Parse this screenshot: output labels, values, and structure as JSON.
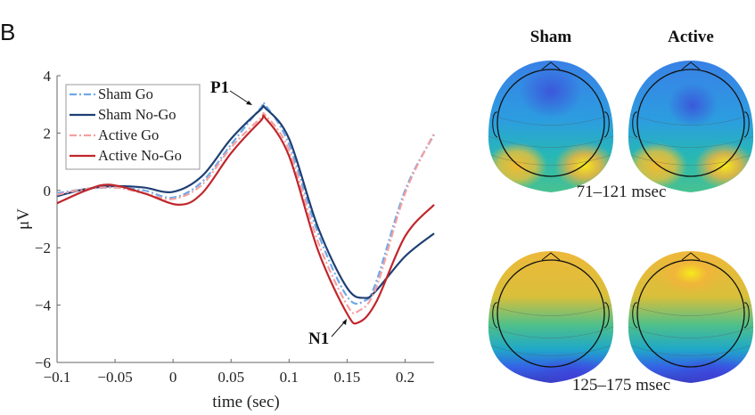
{
  "panel_label": "B",
  "chart_data": {
    "type": "line",
    "title": "",
    "xlabel": "time (sec)",
    "ylabel": "μV",
    "xlim": [
      -0.1,
      0.225
    ],
    "ylim": [
      -6,
      4
    ],
    "xticks": [
      -0.1,
      -0.05,
      0,
      0.05,
      0.1,
      0.15,
      0.2
    ],
    "xtick_labels": [
      "-0.1",
      "-0.05",
      "0",
      "0.05",
      "0.1",
      "0.15",
      "0.2"
    ],
    "yticks": [
      -6,
      -4,
      -2,
      0,
      2,
      4
    ],
    "ytick_labels": [
      "-6",
      "-4",
      "-2",
      "0",
      "2",
      "4"
    ],
    "grid": false,
    "legend_position": "top-left",
    "series": [
      {
        "name": "Sham Go",
        "color": "#6fa8e8",
        "style": "dashdot",
        "x": [
          -0.1,
          -0.075,
          -0.05,
          -0.025,
          0,
          0.025,
          0.05,
          0.075,
          0.08,
          0.1,
          0.125,
          0.15,
          0.165,
          0.175,
          0.2,
          0.225
        ],
        "y": [
          -0.1,
          0.05,
          0.1,
          0.0,
          -0.25,
          0.3,
          1.6,
          2.85,
          2.95,
          1.6,
          -1.5,
          -3.7,
          -3.85,
          -3.2,
          0.0,
          1.95
        ]
      },
      {
        "name": "Sham No-Go",
        "color": "#1f3f73",
        "style": "solid",
        "x": [
          -0.1,
          -0.075,
          -0.05,
          -0.025,
          0,
          0.025,
          0.05,
          0.075,
          0.08,
          0.1,
          0.125,
          0.15,
          0.165,
          0.175,
          0.2,
          0.225
        ],
        "y": [
          -0.2,
          0.05,
          0.15,
          0.1,
          -0.05,
          0.5,
          1.8,
          2.8,
          2.85,
          1.8,
          -1.3,
          -3.4,
          -3.75,
          -3.5,
          -2.3,
          -1.5
        ]
      },
      {
        "name": "Active Go",
        "color": "#f5a0a0",
        "style": "dashdot",
        "x": [
          -0.1,
          -0.075,
          -0.05,
          -0.025,
          0,
          0.025,
          0.05,
          0.075,
          0.08,
          0.1,
          0.125,
          0.15,
          0.16,
          0.175,
          0.2,
          0.225
        ],
        "y": [
          -0.15,
          0.05,
          0.1,
          -0.1,
          -0.3,
          0.2,
          1.5,
          2.5,
          2.6,
          1.4,
          -1.8,
          -4.0,
          -4.2,
          -3.4,
          -0.1,
          2.0
        ]
      },
      {
        "name": "Active No-Go",
        "color": "#c0262b",
        "style": "solid",
        "x": [
          -0.1,
          -0.075,
          -0.055,
          -0.025,
          0.005,
          0.025,
          0.05,
          0.075,
          0.08,
          0.1,
          0.125,
          0.15,
          0.16,
          0.175,
          0.2,
          0.225
        ],
        "y": [
          -0.45,
          0.0,
          0.2,
          -0.1,
          -0.5,
          -0.1,
          1.3,
          2.4,
          2.5,
          1.2,
          -2.1,
          -4.3,
          -4.6,
          -3.9,
          -1.6,
          -0.5
        ]
      }
    ],
    "annotations": [
      {
        "text": "P1",
        "x": 0.08,
        "y": 2.95
      },
      {
        "text": "N1",
        "x": 0.16,
        "y": -4.6
      }
    ]
  },
  "topomaps": {
    "columns": [
      "Sham",
      "Active"
    ],
    "windows": [
      "71–121 msec",
      "125–175 msec"
    ]
  }
}
